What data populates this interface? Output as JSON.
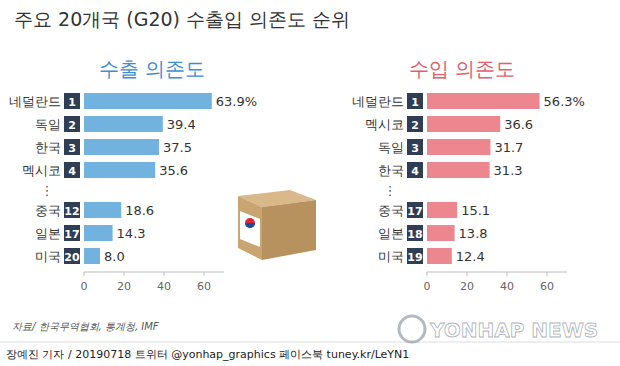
{
  "title": "주요 20개국 (G20) 수출입 의존도 순위",
  "chart_data": [
    {
      "type": "bar",
      "orientation": "horizontal",
      "title": "수출 의존도",
      "categories": [
        "네덜란드",
        "독일",
        "한국",
        "멕시코",
        "중국",
        "일본",
        "미국"
      ],
      "ranks": [
        1,
        2,
        3,
        4,
        12,
        17,
        20
      ],
      "separator": "⋮",
      "values": [
        63.9,
        39.4,
        37.5,
        35.6,
        18.6,
        14.3,
        8.0
      ],
      "value_labels": [
        "63.9%",
        "39.4",
        "37.5",
        "35.6",
        "18.6",
        "14.3",
        "8.0"
      ],
      "color": "#72b2de",
      "xlim": [
        0,
        70
      ],
      "xticks": [
        0,
        20,
        40,
        60
      ],
      "grid": false,
      "data_labels": true
    },
    {
      "type": "bar",
      "orientation": "horizontal",
      "title": "수입 의존도",
      "categories": [
        "네덜란드",
        "멕시코",
        "독일",
        "한국",
        "중국",
        "일본",
        "미국"
      ],
      "ranks": [
        1,
        2,
        3,
        4,
        17,
        18,
        19
      ],
      "separator": "⋮",
      "values": [
        56.3,
        36.6,
        31.7,
        31.3,
        15.1,
        13.8,
        12.4
      ],
      "value_labels": [
        "56.3%",
        "36.6",
        "31.7",
        "31.3",
        "15.1",
        "13.8",
        "12.4"
      ],
      "color": "#ec8790",
      "xlim": [
        0,
        70
      ],
      "xticks": [
        0,
        20,
        40,
        60
      ],
      "grid": false,
      "data_labels": true
    }
  ],
  "source": "자료/ 한국무역협회, 통계청, IMF",
  "credit": "장예진 기자 / 20190718 트위터 @yonhap_graphics 페이스북 tuney.kr/LeYN1",
  "watermark": "YONHAP NEWS"
}
